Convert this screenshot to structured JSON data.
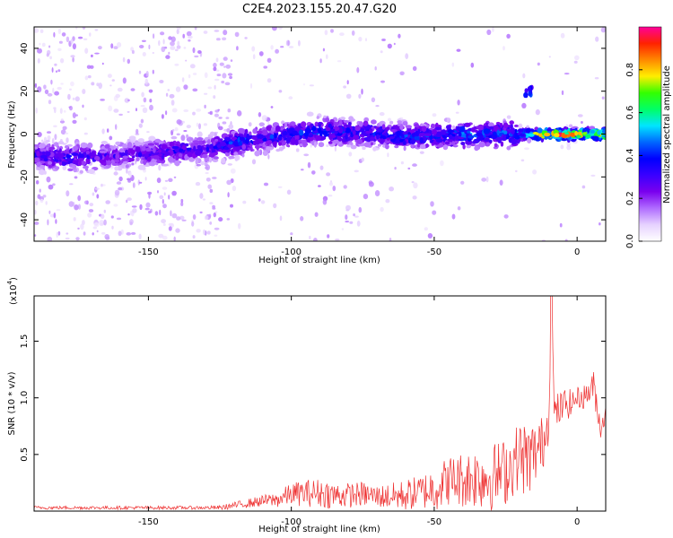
{
  "figure_title": "C2E4.2023.155.20.47.G20",
  "colors": {
    "snr_line": "#ee3030",
    "colormap": [
      "#ffffff",
      "#e6d2ff",
      "#b06cff",
      "#7a00ee",
      "#3a00ff",
      "#0000ff",
      "#0066ff",
      "#00e5ff",
      "#00ff66",
      "#33ff00",
      "#ffee00",
      "#ff8800",
      "#ff2200",
      "#ff0099"
    ]
  },
  "chart_data": [
    {
      "type": "heatmap",
      "title": "C2E4.2023.155.20.47.G20",
      "xlabel": "Height of straight line (km)",
      "ylabel": "Frequency (Hz)",
      "xlim": [
        -190,
        10
      ],
      "ylim": [
        -50,
        50
      ],
      "x_ticks": [
        -150,
        -100,
        -50,
        0
      ],
      "x_tick_labels": [
        "-150",
        "-100",
        "-50",
        "0"
      ],
      "y_ticks": [
        -40,
        -20,
        0,
        20,
        40
      ],
      "y_tick_labels": [
        "-40",
        "-20",
        "0",
        "20",
        "40"
      ],
      "grid": false,
      "colorbar": {
        "label": "Normalized spectral amplitude",
        "range": [
          0,
          1
        ],
        "ticks": [
          0.0,
          0.2,
          0.4,
          0.6,
          0.8
        ],
        "tick_labels": [
          "0.0",
          "0.2",
          "0.4",
          "0.6",
          "0.8"
        ]
      },
      "ridge": {
        "x": [
          -190,
          -180,
          -170,
          -160,
          -150,
          -140,
          -130,
          -120,
          -110,
          -100,
          -90,
          -80,
          -70,
          -60,
          -50,
          -40,
          -30,
          -20,
          -15,
          -10,
          -5,
          0,
          5,
          10
        ],
        "frequency": [
          -10,
          -11,
          -11,
          -10,
          -9,
          -8,
          -7,
          -4,
          -2,
          0,
          1,
          1,
          0,
          -1,
          -1,
          0,
          0,
          0,
          0,
          0,
          0,
          0,
          0,
          0
        ],
        "amplitude": [
          0.35,
          0.38,
          0.35,
          0.3,
          0.33,
          0.38,
          0.32,
          0.45,
          0.4,
          0.42,
          0.45,
          0.43,
          0.42,
          0.45,
          0.42,
          0.5,
          0.45,
          0.5,
          0.85,
          0.9,
          0.95,
          0.92,
          0.9,
          0.88
        ]
      },
      "isolated_feature": {
        "x": -17,
        "frequency": 20,
        "amplitude": 0.45
      }
    },
    {
      "type": "line",
      "xlabel": "Height of straight line (km)",
      "ylabel": "SNR (10 * v/v)",
      "y_multiplier_label": "(x10",
      "y_multiplier_exp": "4",
      "y_multiplier_close": ")",
      "xlim": [
        -190,
        10
      ],
      "ylim": [
        0,
        1.9
      ],
      "x_ticks": [
        -150,
        -100,
        -50,
        0
      ],
      "x_tick_labels": [
        "-150",
        "-100",
        "-50",
        "0"
      ],
      "y_ticks": [
        0.5,
        1.0,
        1.5
      ],
      "y_tick_labels": [
        "0.5",
        "1.0",
        "1.5"
      ],
      "grid": false,
      "series": [
        {
          "color": "#ee3030",
          "x": [
            -190,
            -180,
            -170,
            -160,
            -150,
            -140,
            -130,
            -125,
            -120,
            -115,
            -110,
            -105,
            -100,
            -95,
            -90,
            -85,
            -80,
            -75,
            -70,
            -65,
            -60,
            -55,
            -50,
            -45,
            -40,
            -35,
            -30,
            -25,
            -20,
            -18,
            -15,
            -12,
            -10,
            -9,
            -8,
            -6,
            -4,
            -2,
            0,
            2,
            4,
            6,
            8,
            10
          ],
          "values": [
            0.03,
            0.03,
            0.03,
            0.03,
            0.03,
            0.03,
            0.03,
            0.03,
            0.05,
            0.07,
            0.09,
            0.1,
            0.15,
            0.16,
            0.16,
            0.14,
            0.14,
            0.15,
            0.13,
            0.13,
            0.14,
            0.17,
            0.2,
            0.27,
            0.28,
            0.3,
            0.3,
            0.35,
            0.5,
            0.45,
            0.5,
            0.6,
            0.8,
            1.85,
            0.85,
            0.9,
            0.95,
            0.95,
            1.0,
            1.0,
            1.05,
            1.1,
            0.75,
            0.85
          ],
          "noise": [
            0.015,
            0.015,
            0.015,
            0.015,
            0.015,
            0.015,
            0.015,
            0.02,
            0.03,
            0.04,
            0.05,
            0.07,
            0.1,
            0.12,
            0.13,
            0.12,
            0.11,
            0.11,
            0.1,
            0.12,
            0.14,
            0.15,
            0.2,
            0.22,
            0.25,
            0.28,
            0.3,
            0.3,
            0.3,
            0.35,
            0.3,
            0.25,
            0.2,
            0.1,
            0.2,
            0.15,
            0.15,
            0.12,
            0.1,
            0.1,
            0.12,
            0.15,
            0.12,
            0.1
          ]
        }
      ]
    }
  ]
}
